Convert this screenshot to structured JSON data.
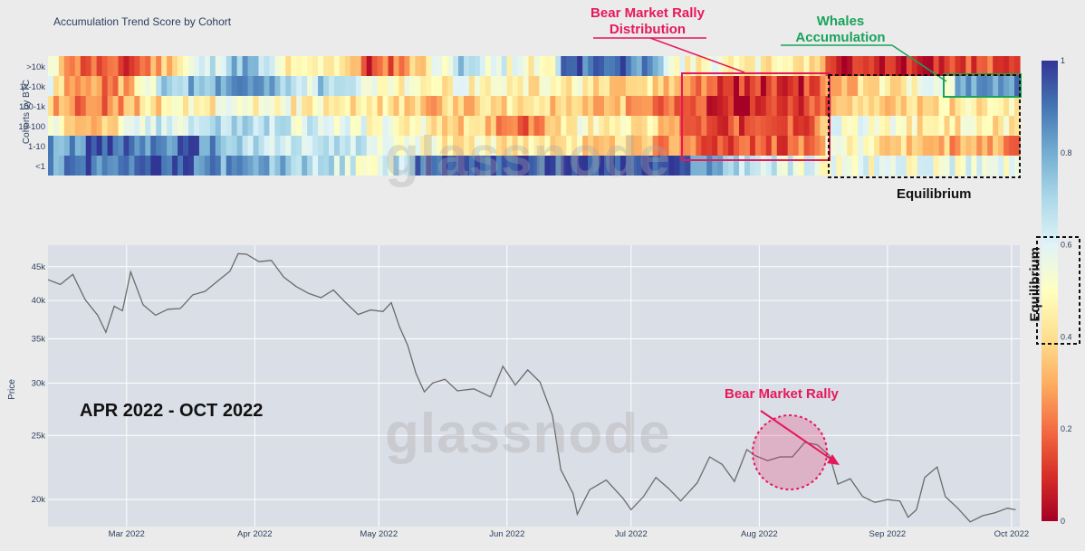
{
  "chart_data": [
    {
      "type": "heatmap",
      "title": "Accumulation Trend Score by Cohort",
      "ylabel": "Cohorts by BTC",
      "rows": [
        ">10k",
        "1k-10k",
        "100-1k",
        "10-100",
        "1-10",
        "<1"
      ],
      "colorscale": {
        "range": [
          0,
          1
        ],
        "ticks": [
          "0",
          "0.2",
          "0.4",
          "0.6",
          "0.8",
          "1"
        ],
        "colors": [
          "#a50026",
          "#d73027",
          "#f46d43",
          "#fdae61",
          "#fee090",
          "#ffffbf",
          "#e0f3f8",
          "#abd9e9",
          "#74add1",
          "#4575b4",
          "#313695"
        ]
      },
      "profiles": [
        [
          [
            0,
            0.5
          ],
          [
            0.03,
            0.2
          ],
          [
            0.08,
            0.1
          ],
          [
            0.14,
            0.5
          ],
          [
            0.2,
            0.8
          ],
          [
            0.25,
            0.4
          ],
          [
            0.3,
            0.5
          ],
          [
            0.33,
            0.1
          ],
          [
            0.37,
            0.3
          ],
          [
            0.42,
            0.7
          ],
          [
            0.47,
            0.55
          ],
          [
            0.52,
            0.45
          ],
          [
            0.53,
            0.9
          ],
          [
            0.6,
            0.95
          ],
          [
            0.65,
            0.5
          ],
          [
            0.72,
            0.5
          ],
          [
            0.78,
            0.4
          ],
          [
            0.8,
            0.35
          ],
          [
            0.81,
            0.05
          ],
          [
            0.9,
            0.1
          ],
          [
            0.97,
            0.15
          ],
          [
            1,
            0.2
          ]
        ],
        [
          [
            0,
            0.5
          ],
          [
            0.03,
            0.2
          ],
          [
            0.08,
            0.3
          ],
          [
            0.12,
            0.7
          ],
          [
            0.2,
            0.9
          ],
          [
            0.26,
            0.6
          ],
          [
            0.3,
            0.8
          ],
          [
            0.34,
            0.45
          ],
          [
            0.45,
            0.5
          ],
          [
            0.55,
            0.45
          ],
          [
            0.62,
            0.4
          ],
          [
            0.66,
            0.3
          ],
          [
            0.7,
            0.1
          ],
          [
            0.78,
            0.1
          ],
          [
            0.8,
            0.2
          ],
          [
            0.82,
            0.35
          ],
          [
            0.88,
            0.45
          ],
          [
            0.93,
            0.55
          ],
          [
            0.94,
            0.85
          ],
          [
            1,
            0.85
          ]
        ],
        [
          [
            0,
            0.3
          ],
          [
            0.05,
            0.2
          ],
          [
            0.1,
            0.4
          ],
          [
            0.2,
            0.5
          ],
          [
            0.3,
            0.45
          ],
          [
            0.4,
            0.35
          ],
          [
            0.5,
            0.4
          ],
          [
            0.58,
            0.35
          ],
          [
            0.66,
            0.15
          ],
          [
            0.72,
            0.05
          ],
          [
            0.78,
            0.1
          ],
          [
            0.8,
            0.15
          ],
          [
            0.82,
            0.35
          ],
          [
            0.9,
            0.4
          ],
          [
            1,
            0.45
          ]
        ],
        [
          [
            0,
            0.5
          ],
          [
            0.05,
            0.3
          ],
          [
            0.1,
            0.6
          ],
          [
            0.2,
            0.7
          ],
          [
            0.3,
            0.55
          ],
          [
            0.4,
            0.45
          ],
          [
            0.46,
            0.3
          ],
          [
            0.5,
            0.2
          ],
          [
            0.52,
            0.45
          ],
          [
            0.6,
            0.5
          ],
          [
            0.66,
            0.2
          ],
          [
            0.74,
            0.1
          ],
          [
            0.79,
            0.2
          ],
          [
            0.81,
            0.55
          ],
          [
            0.9,
            0.45
          ],
          [
            1,
            0.45
          ]
        ],
        [
          [
            0,
            0.8
          ],
          [
            0.05,
            0.95
          ],
          [
            0.1,
            0.85
          ],
          [
            0.15,
            0.9
          ],
          [
            0.22,
            0.6
          ],
          [
            0.3,
            0.65
          ],
          [
            0.38,
            0.5
          ],
          [
            0.45,
            0.45
          ],
          [
            0.52,
            0.45
          ],
          [
            0.6,
            0.35
          ],
          [
            0.66,
            0.2
          ],
          [
            0.74,
            0.15
          ],
          [
            0.79,
            0.25
          ],
          [
            0.81,
            0.55
          ],
          [
            0.88,
            0.35
          ],
          [
            0.95,
            0.3
          ],
          [
            1,
            0.25
          ]
        ],
        [
          [
            0,
            0.8
          ],
          [
            0.03,
            0.9
          ],
          [
            0.1,
            0.95
          ],
          [
            0.2,
            0.8
          ],
          [
            0.28,
            0.7
          ],
          [
            0.34,
            0.5
          ],
          [
            0.39,
            0.95
          ],
          [
            0.5,
            0.97
          ],
          [
            0.6,
            0.97
          ],
          [
            0.66,
            0.9
          ],
          [
            0.7,
            0.75
          ],
          [
            0.75,
            0.6
          ],
          [
            0.8,
            0.55
          ],
          [
            0.85,
            0.55
          ],
          [
            1,
            0.55
          ]
        ]
      ]
    },
    {
      "type": "line",
      "ylabel": "Price",
      "yscale": "log",
      "y_ticks": [
        {
          "value": 20000,
          "label": "20k"
        },
        {
          "value": 25000,
          "label": "25k"
        },
        {
          "value": 30000,
          "label": "30k"
        },
        {
          "value": 35000,
          "label": "35k"
        },
        {
          "value": 40000,
          "label": "40k"
        },
        {
          "value": 45000,
          "label": "45k"
        }
      ],
      "ylim": [
        18200,
        48500
      ],
      "xlim": [
        "2022-02-10",
        "2022-10-03"
      ],
      "x_ticks": [
        {
          "date": "2022-03-01",
          "label": "Mar 2022"
        },
        {
          "date": "2022-04-01",
          "label": "Apr 2022"
        },
        {
          "date": "2022-05-01",
          "label": "May 2022"
        },
        {
          "date": "2022-06-01",
          "label": "Jun 2022"
        },
        {
          "date": "2022-07-01",
          "label": "Jul 2022"
        },
        {
          "date": "2022-08-01",
          "label": "Aug 2022"
        },
        {
          "date": "2022-09-01",
          "label": "Sep 2022"
        },
        {
          "date": "2022-10-01",
          "label": "Oct 2022"
        }
      ],
      "series": [
        {
          "color": "#6b6b6b",
          "points": [
            [
              "2022-02-10",
              43000
            ],
            [
              "2022-02-13",
              42300
            ],
            [
              "2022-02-16",
              43800
            ],
            [
              "2022-02-19",
              40100
            ],
            [
              "2022-02-22",
              38000
            ],
            [
              "2022-02-24",
              35800
            ],
            [
              "2022-02-26",
              39200
            ],
            [
              "2022-02-28",
              38600
            ],
            [
              "2022-03-02",
              44200
            ],
            [
              "2022-03-05",
              39400
            ],
            [
              "2022-03-08",
              38000
            ],
            [
              "2022-03-11",
              38800
            ],
            [
              "2022-03-14",
              38900
            ],
            [
              "2022-03-17",
              40800
            ],
            [
              "2022-03-20",
              41300
            ],
            [
              "2022-03-23",
              42800
            ],
            [
              "2022-03-26",
              44300
            ],
            [
              "2022-03-28",
              47100
            ],
            [
              "2022-03-30",
              47000
            ],
            [
              "2022-04-02",
              45800
            ],
            [
              "2022-04-05",
              46000
            ],
            [
              "2022-04-08",
              43400
            ],
            [
              "2022-04-11",
              42000
            ],
            [
              "2022-04-14",
              41000
            ],
            [
              "2022-04-17",
              40400
            ],
            [
              "2022-04-20",
              41500
            ],
            [
              "2022-04-23",
              39700
            ],
            [
              "2022-04-26",
              38100
            ],
            [
              "2022-04-29",
              38700
            ],
            [
              "2022-05-02",
              38500
            ],
            [
              "2022-05-04",
              39700
            ],
            [
              "2022-05-06",
              36500
            ],
            [
              "2022-05-08",
              34200
            ],
            [
              "2022-05-10",
              31000
            ],
            [
              "2022-05-12",
              29100
            ],
            [
              "2022-05-14",
              30000
            ],
            [
              "2022-05-17",
              30400
            ],
            [
              "2022-05-20",
              29200
            ],
            [
              "2022-05-24",
              29400
            ],
            [
              "2022-05-28",
              28600
            ],
            [
              "2022-05-31",
              31800
            ],
            [
              "2022-06-03",
              29800
            ],
            [
              "2022-06-06",
              31400
            ],
            [
              "2022-06-09",
              30100
            ],
            [
              "2022-06-12",
              26800
            ],
            [
              "2022-06-14",
              22200
            ],
            [
              "2022-06-17",
              20400
            ],
            [
              "2022-06-18",
              19000
            ],
            [
              "2022-06-21",
              20700
            ],
            [
              "2022-06-25",
              21400
            ],
            [
              "2022-06-29",
              20100
            ],
            [
              "2022-07-01",
              19300
            ],
            [
              "2022-07-04",
              20200
            ],
            [
              "2022-07-07",
              21600
            ],
            [
              "2022-07-10",
              20800
            ],
            [
              "2022-07-13",
              19900
            ],
            [
              "2022-07-17",
              21200
            ],
            [
              "2022-07-20",
              23200
            ],
            [
              "2022-07-23",
              22600
            ],
            [
              "2022-07-26",
              21300
            ],
            [
              "2022-07-29",
              23800
            ],
            [
              "2022-07-31",
              23300
            ],
            [
              "2022-08-03",
              22900
            ],
            [
              "2022-08-06",
              23200
            ],
            [
              "2022-08-09",
              23200
            ],
            [
              "2022-08-12",
              24400
            ],
            [
              "2022-08-15",
              24200
            ],
            [
              "2022-08-18",
              23300
            ],
            [
              "2022-08-20",
              21100
            ],
            [
              "2022-08-23",
              21500
            ],
            [
              "2022-08-26",
              20200
            ],
            [
              "2022-08-29",
              19800
            ],
            [
              "2022-09-01",
              20000
            ],
            [
              "2022-09-04",
              19900
            ],
            [
              "2022-09-06",
              18800
            ],
            [
              "2022-09-08",
              19300
            ],
            [
              "2022-09-10",
              21600
            ],
            [
              "2022-09-13",
              22400
            ],
            [
              "2022-09-15",
              20200
            ],
            [
              "2022-09-18",
              19400
            ],
            [
              "2022-09-21",
              18500
            ],
            [
              "2022-09-24",
              18900
            ],
            [
              "2022-09-27",
              19100
            ],
            [
              "2022-09-30",
              19400
            ],
            [
              "2022-10-02",
              19300
            ]
          ]
        }
      ]
    }
  ],
  "annotations": {
    "rally_distribution": [
      "Bear Market Rally",
      "Distribution"
    ],
    "whales": [
      "Whales",
      "Accumulation"
    ],
    "equilibrium": "Equilibrium",
    "period": "APR 2022 - OCT 2022",
    "rally_price": "Bear Market Rally"
  },
  "watermark": "glassnode"
}
